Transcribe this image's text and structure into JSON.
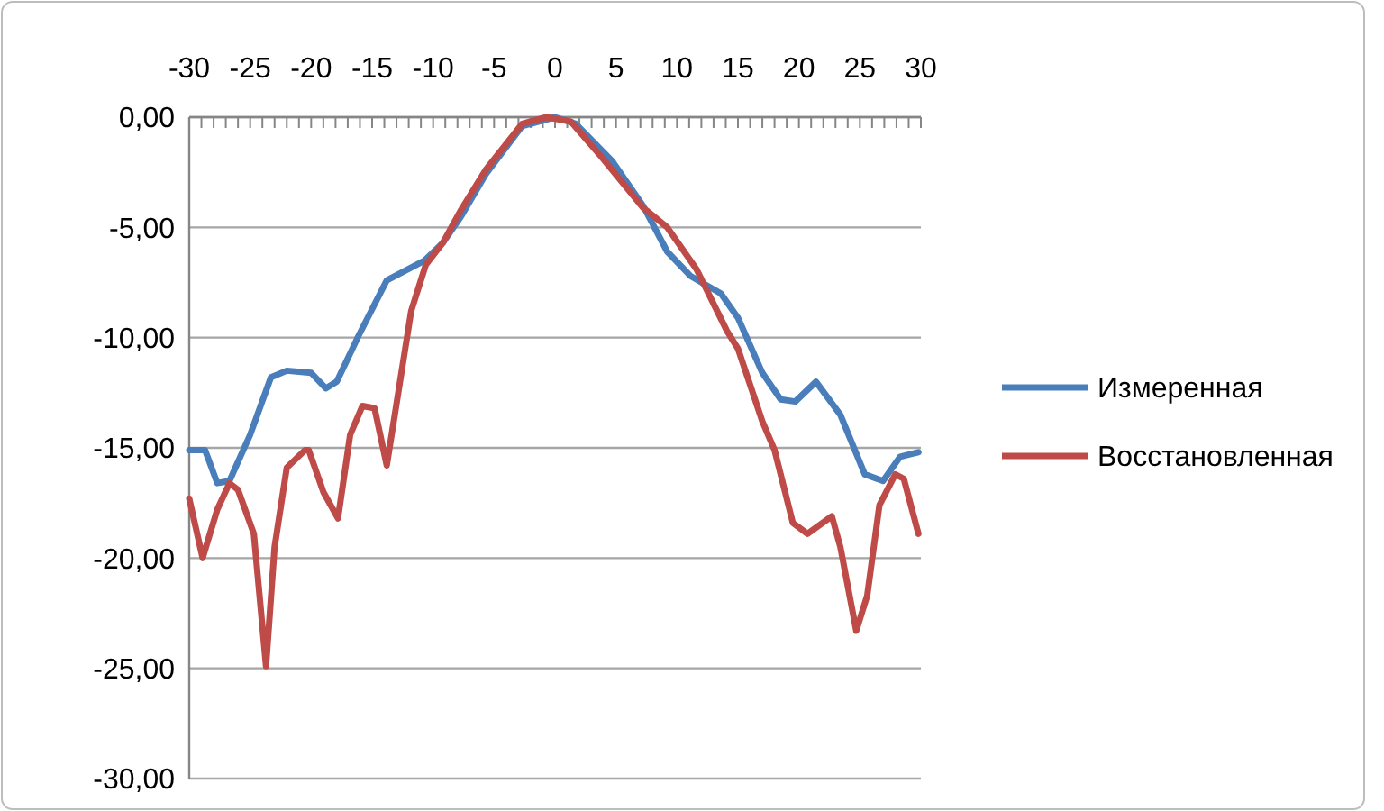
{
  "chart_data": {
    "type": "line",
    "xlim": [
      -30,
      30
    ],
    "ylim": [
      -30,
      0
    ],
    "xticks": [
      -30,
      {
        "value": -29,
        "label": null
      },
      {
        "value": -28,
        "label": null
      },
      {
        "value": -27,
        "label": null
      },
      {
        "value": -26,
        "label": null
      },
      -25,
      {
        "value": -24,
        "label": null
      },
      {
        "value": -23,
        "label": null
      },
      {
        "value": -22,
        "label": null
      },
      {
        "value": -21,
        "label": null
      },
      -20,
      {
        "value": -19,
        "label": null
      },
      {
        "value": -18,
        "label": null
      },
      {
        "value": -17,
        "label": null
      },
      {
        "value": -16,
        "label": null
      },
      -15,
      {
        "value": -14,
        "label": null
      },
      {
        "value": -13,
        "label": null
      },
      {
        "value": -12,
        "label": null
      },
      {
        "value": -11,
        "label": null
      },
      -10,
      {
        "value": -9,
        "label": null
      },
      {
        "value": -8,
        "label": null
      },
      {
        "value": -7,
        "label": null
      },
      {
        "value": -6,
        "label": null
      },
      -5,
      {
        "value": -4,
        "label": null
      },
      {
        "value": -3,
        "label": null
      },
      {
        "value": -2,
        "label": null
      },
      {
        "value": -1,
        "label": null
      },
      0,
      {
        "value": 1,
        "label": null
      },
      {
        "value": 2,
        "label": null
      },
      {
        "value": 3,
        "label": null
      },
      {
        "value": 4,
        "label": null
      },
      5,
      {
        "value": 6,
        "label": null
      },
      {
        "value": 7,
        "label": null
      },
      {
        "value": 8,
        "label": null
      },
      {
        "value": 9,
        "label": null
      },
      10,
      {
        "value": 11,
        "label": null
      },
      {
        "value": 12,
        "label": null
      },
      {
        "value": 13,
        "label": null
      },
      {
        "value": 14,
        "label": null
      },
      15,
      {
        "value": 16,
        "label": null
      },
      {
        "value": 17,
        "label": null
      },
      {
        "value": 18,
        "label": null
      },
      {
        "value": 19,
        "label": null
      },
      20,
      {
        "value": 21,
        "label": null
      },
      {
        "value": 22,
        "label": null
      },
      {
        "value": 23,
        "label": null
      },
      {
        "value": 24,
        "label": null
      },
      25,
      {
        "value": 26,
        "label": null
      },
      {
        "value": 27,
        "label": null
      },
      {
        "value": 28,
        "label": null
      },
      {
        "value": 29,
        "label": null
      },
      30
    ],
    "yticks": [
      {
        "value": 0,
        "label": "0,00"
      },
      {
        "value": -5,
        "label": "-5,00"
      },
      {
        "value": -10,
        "label": "-10,00"
      },
      {
        "value": -15,
        "label": "-15,00"
      },
      {
        "value": -20,
        "label": "-20,00"
      },
      {
        "value": -25,
        "label": "-25,00"
      },
      {
        "value": -30,
        "label": "-30,00"
      }
    ],
    "grid": "y",
    "legend": "right",
    "marker": "none",
    "line_style": "solid",
    "series": [
      {
        "name": "Измеренная",
        "color": "#4a7ebb",
        "x": [
          -30,
          -28.7,
          -27.7,
          -26.7,
          -25,
          -23.3,
          -22,
          -20,
          -18.8,
          -17.9,
          -16.1,
          -13.8,
          -10.7,
          -9.2,
          -7.7,
          -5.7,
          -2.7,
          0,
          1.7,
          4.7,
          7.2,
          9.2,
          11.1,
          13.6,
          15,
          17,
          18.5,
          19.7,
          21.4,
          23.4,
          25.4,
          26.9,
          28.3,
          29.8
        ],
        "values": [
          -15.1,
          -15.1,
          -16.6,
          -16.5,
          -14.4,
          -11.8,
          -11.5,
          -11.6,
          -12.3,
          -12,
          -9.9,
          -7.4,
          -6.5,
          -5.7,
          -4.5,
          -2.6,
          -0.4,
          0,
          -0.3,
          -2,
          -4,
          -6.1,
          -7.2,
          -8,
          -9.1,
          -11.6,
          -12.8,
          -12.9,
          -12,
          -13.5,
          -16.2,
          -16.5,
          -15.4,
          -15.2
        ]
      },
      {
        "name": "Восстановленная",
        "color": "#be4b48",
        "x": [
          -30,
          -28.9,
          -27.7,
          -26.7,
          -26,
          -24.7,
          -23.7,
          -23,
          -22,
          -20.5,
          -20.2,
          -19,
          -17.8,
          -16.8,
          -15.8,
          -14.8,
          -13.8,
          -11.8,
          -10.6,
          -9.2,
          -7.7,
          -5.7,
          -2.7,
          -0.7,
          1.3,
          3.8,
          7.2,
          9.2,
          11.6,
          14.1,
          15,
          17,
          18,
          19.5,
          20.7,
          22.7,
          23.4,
          24.7,
          25.6,
          26.6,
          27.9,
          28.6,
          29.8
        ],
        "values": [
          -17.3,
          -20,
          -17.8,
          -16.6,
          -16.9,
          -18.9,
          -24.9,
          -19.5,
          -15.9,
          -15.1,
          -15.1,
          -17,
          -18.2,
          -14.4,
          -13.1,
          -13.2,
          -15.8,
          -8.8,
          -6.7,
          -5.7,
          -4.2,
          -2.4,
          -0.3,
          0,
          -0.2,
          -1.8,
          -4.1,
          -5,
          -6.9,
          -9.7,
          -10.5,
          -13.8,
          -15.1,
          -18.4,
          -18.9,
          -18.1,
          -19.5,
          -23.3,
          -21.7,
          -17.6,
          -16.2,
          -16.4,
          -18.9
        ]
      }
    ]
  }
}
